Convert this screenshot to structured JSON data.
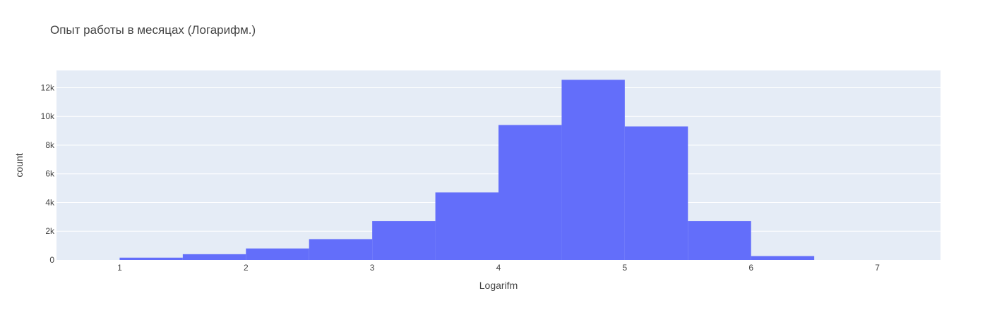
{
  "chart_data": {
    "type": "bar",
    "title": "Опыт работы в месяцах (Логарифм.)",
    "xlabel": "Logarifm",
    "ylabel": "count",
    "bins": [
      {
        "x0": 1.0,
        "x1": 1.5,
        "count": 160
      },
      {
        "x0": 1.5,
        "x1": 2.0,
        "count": 400
      },
      {
        "x0": 2.0,
        "x1": 2.5,
        "count": 800
      },
      {
        "x0": 2.5,
        "x1": 3.0,
        "count": 1450
      },
      {
        "x0": 3.0,
        "x1": 3.5,
        "count": 2700
      },
      {
        "x0": 3.5,
        "x1": 4.0,
        "count": 4700
      },
      {
        "x0": 4.0,
        "x1": 4.5,
        "count": 9400
      },
      {
        "x0": 4.5,
        "x1": 5.0,
        "count": 12550
      },
      {
        "x0": 5.0,
        "x1": 5.5,
        "count": 9300
      },
      {
        "x0": 5.5,
        "x1": 6.0,
        "count": 2700
      },
      {
        "x0": 6.0,
        "x1": 6.5,
        "count": 270
      }
    ],
    "xlim": [
      0.5,
      7.5
    ],
    "ylim": [
      0,
      13200
    ],
    "x_ticks": [
      1,
      2,
      3,
      4,
      5,
      6,
      7
    ],
    "x_tick_labels": [
      "1",
      "2",
      "3",
      "4",
      "5",
      "6",
      "7"
    ],
    "y_ticks": [
      0,
      2000,
      4000,
      6000,
      8000,
      10000,
      12000
    ],
    "y_tick_labels": [
      "0",
      "2k",
      "4k",
      "6k",
      "8k",
      "10k",
      "12k"
    ],
    "grid": true,
    "colors": {
      "bar": "#636efa",
      "plot_bg": "#e5ecf6",
      "grid": "#ffffff"
    }
  }
}
